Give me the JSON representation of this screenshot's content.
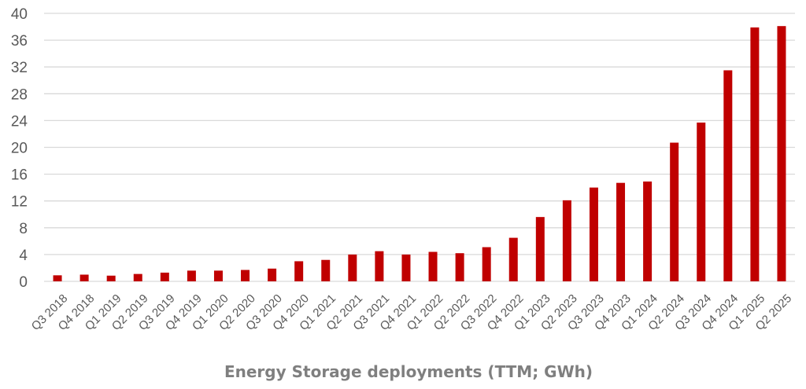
{
  "chart_data": {
    "type": "bar",
    "title": "Energy Storage deployments (TTM; GWh)",
    "xlabel": "",
    "ylabel": "",
    "ylim": [
      0,
      40
    ],
    "yticks": [
      "0",
      "4",
      "8",
      "12",
      "16",
      "20",
      "24",
      "28",
      "32",
      "36",
      "40"
    ],
    "grid": true,
    "bar_color": "#c00000",
    "categories": [
      "Q3 2018",
      "Q4 2018",
      "Q1 2019",
      "Q2 2019",
      "Q3 2019",
      "Q4 2019",
      "Q1 2020",
      "Q2 2020",
      "Q3 2020",
      "Q4 2020",
      "Q1 2021",
      "Q2 2021",
      "Q3 2021",
      "Q4 2021",
      "Q1 2022",
      "Q2 2022",
      "Q3 2022",
      "Q4 2022",
      "Q1 2023",
      "Q2 2023",
      "Q3 2023",
      "Q4 2023",
      "Q1 2024",
      "Q2 2024",
      "Q3 2024",
      "Q4 2024",
      "Q1 2025",
      "Q2 2025"
    ],
    "values": [
      0.9,
      1.0,
      0.85,
      1.1,
      1.3,
      1.6,
      1.6,
      1.7,
      1.9,
      3.0,
      3.2,
      4.0,
      4.5,
      4.0,
      4.4,
      4.2,
      5.1,
      6.5,
      9.6,
      12.1,
      14.0,
      14.7,
      14.9,
      20.7,
      23.7,
      31.5,
      37.9,
      38.1
    ]
  }
}
